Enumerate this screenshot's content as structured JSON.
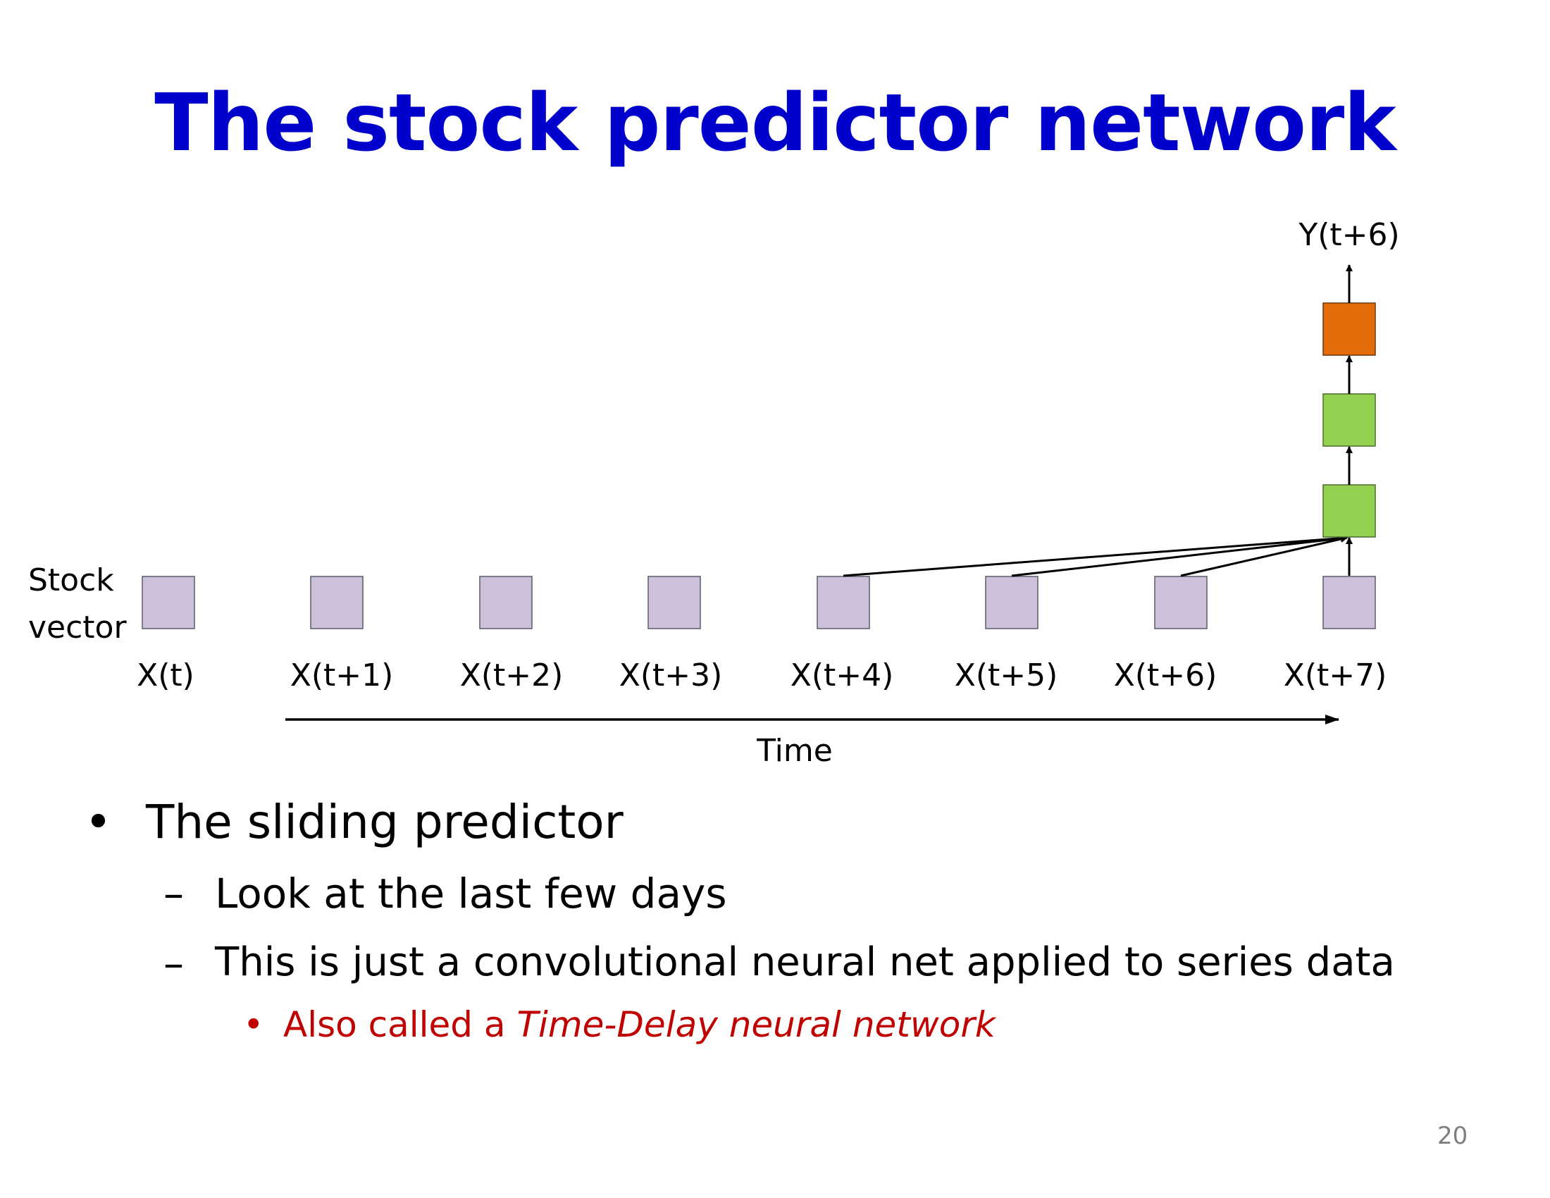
{
  "slide": {
    "title": "The stock predictor network",
    "page_number": "20"
  },
  "diagram": {
    "side_label_line1": "Stock",
    "side_label_line2": "vector",
    "inputs": [
      "X(t)",
      "X(t+1)",
      "X(t+2)",
      "X(t+3)",
      "X(t+4)",
      "X(t+5)",
      "X(t+6)",
      "X(t+7)"
    ],
    "output_label": "Y(t+6)",
    "time_label": "Time",
    "colors": {
      "input_node": "#ccc0da",
      "hidden_node": "#92d050",
      "output_node": "#e36c09",
      "arrow": "#000000"
    }
  },
  "bullets": {
    "level1": "The sliding predictor",
    "level2_a": "Look at the last few days",
    "level2_b": "This is just a convolutional neural net applied to series data",
    "level3_prefix": "Also called a ",
    "level3_italic": "Time-Delay neural network",
    "marker1": "•",
    "marker2": "–",
    "marker3": "•"
  }
}
